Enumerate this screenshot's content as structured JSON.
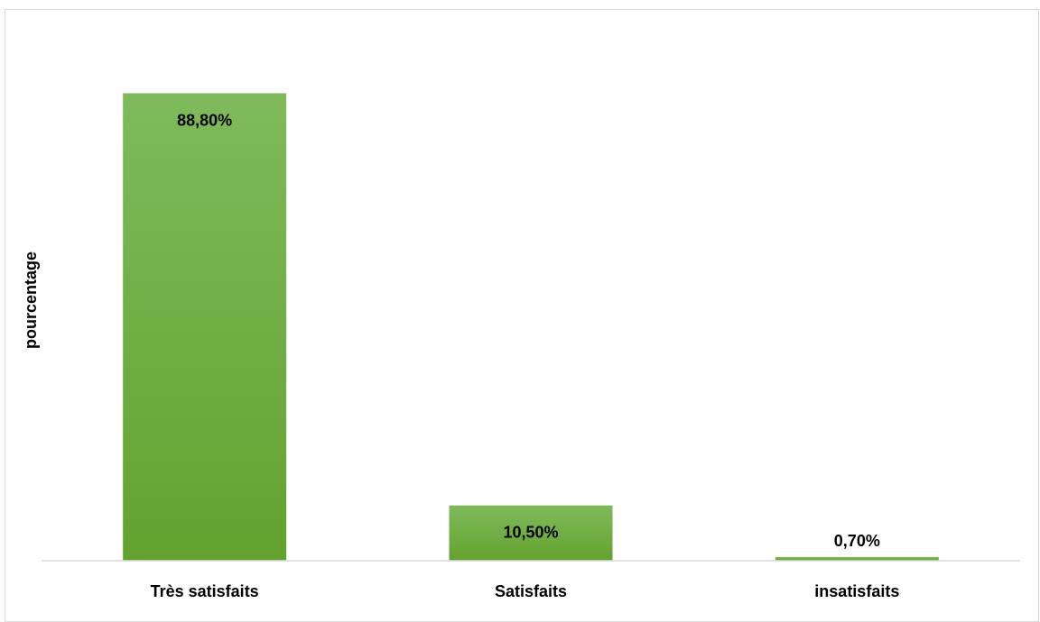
{
  "chart_data": {
    "type": "bar",
    "title": "",
    "xlabel": "",
    "ylabel": "pourcentage",
    "categories": [
      "Très satisfaits",
      "Satisfaits",
      "insatisfaits"
    ],
    "values": [
      88.8,
      10.5,
      0.7
    ],
    "value_labels": [
      "88,80%",
      "10,50%",
      "0,70%"
    ],
    "ylim": [
      0,
      100
    ],
    "grid": false,
    "legend": "none",
    "bar_color_top": "#7fba5c",
    "bar_color_bottom": "#63a22f",
    "axis_color": "#d9d9d9"
  }
}
